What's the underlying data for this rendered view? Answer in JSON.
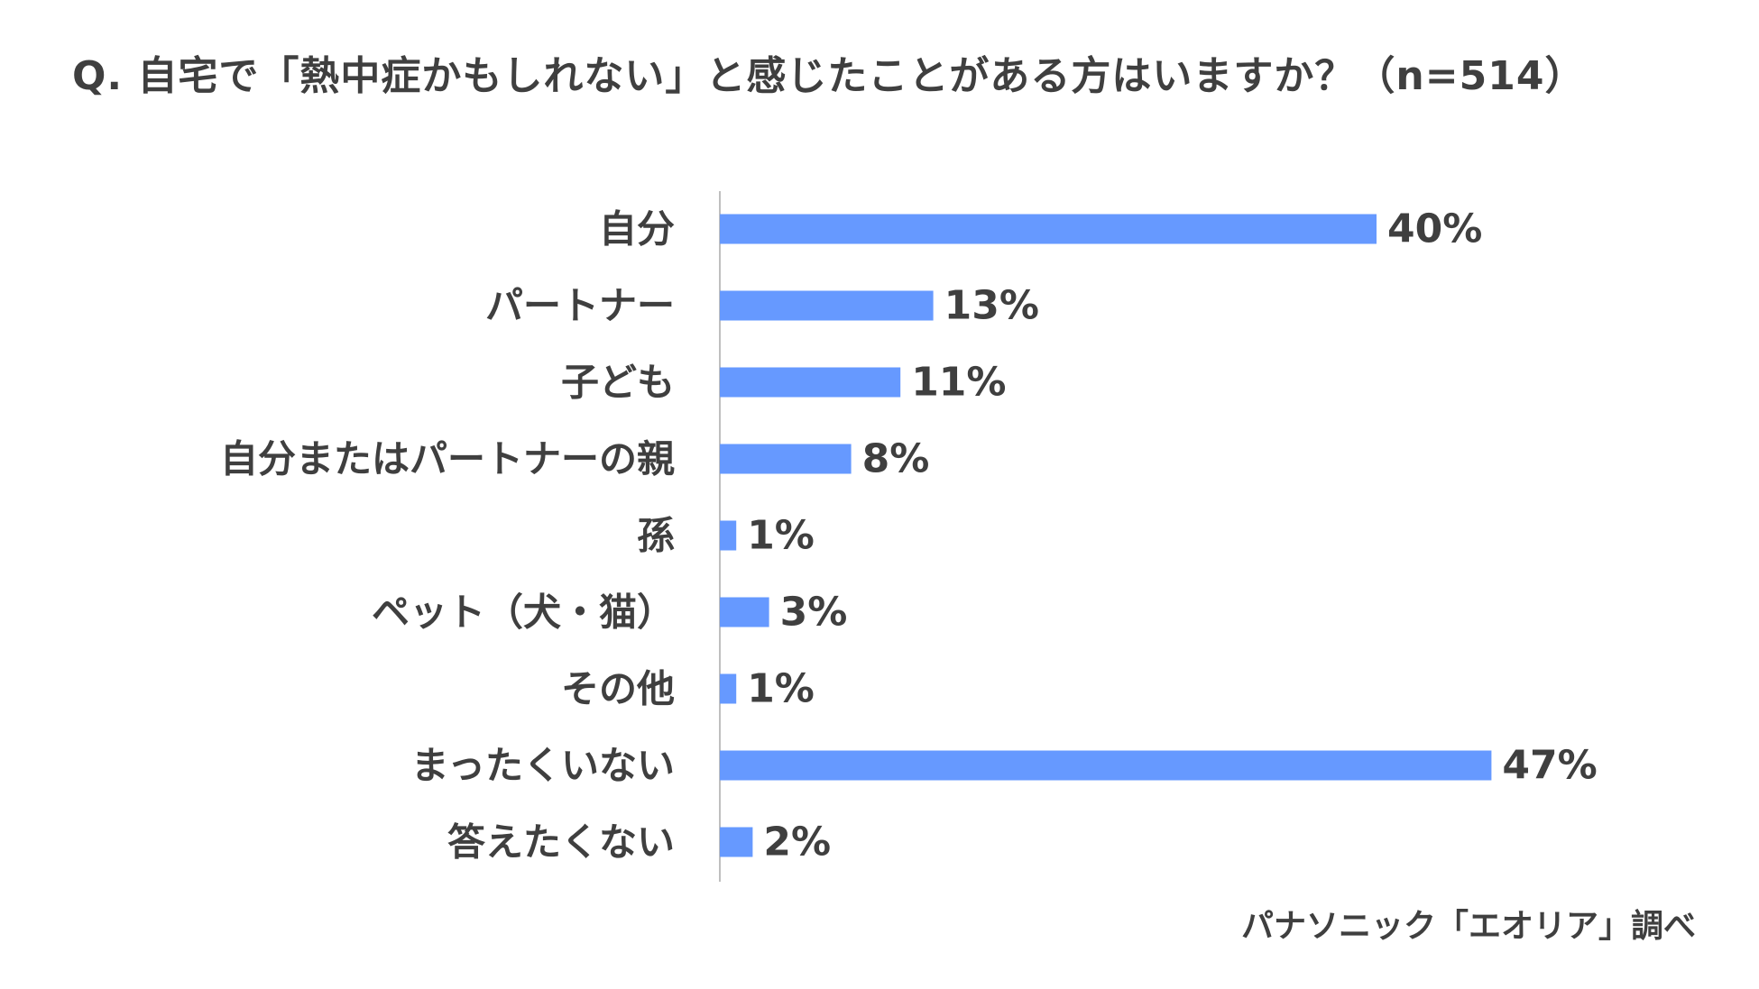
{
  "chart_data": {
    "type": "bar",
    "orientation": "horizontal",
    "title": "Q. 自宅で「熱中症かもしれない」と感じたことがある方はいますか？（n=514）",
    "categories": [
      "自分",
      "パートナー",
      "子ども",
      "自分またはパートナーの親",
      "孫",
      "ペット（犬・猫）",
      "その他",
      "まったくいない",
      "答えたくない"
    ],
    "values": [
      40,
      13,
      11,
      8,
      1,
      3,
      1,
      47,
      2
    ],
    "value_labels": [
      "40%",
      "13%",
      "11%",
      "8%",
      "1%",
      "3%",
      "1%",
      "47%",
      "2%"
    ],
    "unit": "%",
    "xlim": [
      0,
      50
    ],
    "grid": false,
    "bar_color": "#6699ff",
    "source": "パナソニック「エオリア」調べ"
  }
}
